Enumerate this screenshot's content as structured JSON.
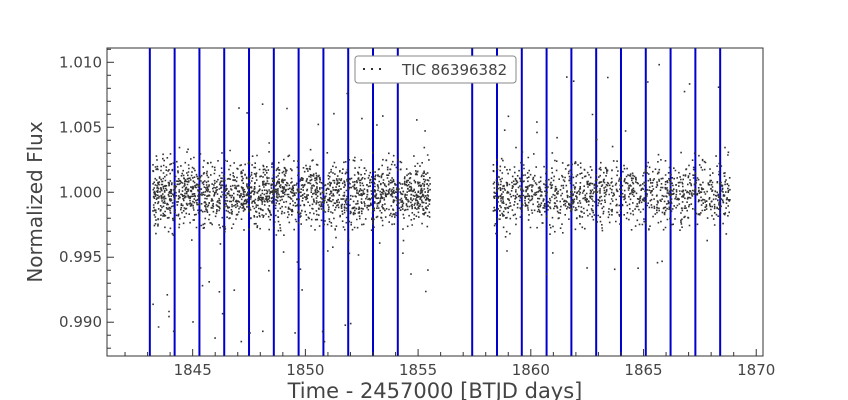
{
  "chart_data": {
    "type": "scatter",
    "xlabel": "Time - 2457000 [BTJD days]",
    "ylabel": "Normalized Flux",
    "xlim": [
      1841.2,
      1870.3
    ],
    "ylim": [
      0.9874,
      1.0111
    ],
    "xticks": [
      1845,
      1850,
      1855,
      1860,
      1865,
      1870
    ],
    "xtick_labels": [
      "1845",
      "1850",
      "1855",
      "1860",
      "1865",
      "1870"
    ],
    "yticks": [
      0.99,
      0.995,
      1.0,
      1.005,
      1.01
    ],
    "ytick_labels": [
      "0.990",
      "0.995",
      "1.000",
      "1.005",
      "1.010"
    ],
    "grid": false,
    "legend_position": "top-center",
    "series": [
      {
        "name": "TIC 86396382",
        "color": "#333333",
        "marker": "dot",
        "segments": [
          {
            "x_start": 1843.2,
            "x_end": 1855.5,
            "center": 1.0,
            "core_halfwidth": 0.0022,
            "outlier_range": [
              0.9885,
              1.0078
            ]
          },
          {
            "x_start": 1858.3,
            "x_end": 1868.8,
            "center": 1.0,
            "core_halfwidth": 0.0022,
            "outlier_range": [
              0.9935,
              1.01
            ]
          }
        ]
      }
    ],
    "vertical_lines": {
      "color": "#0000cc",
      "x": [
        1843.1,
        1844.2,
        1845.3,
        1846.4,
        1847.5,
        1848.6,
        1849.7,
        1850.8,
        1851.9,
        1853.0,
        1854.1,
        1857.4,
        1858.5,
        1859.6,
        1860.7,
        1861.8,
        1862.9,
        1864.0,
        1865.1,
        1866.2,
        1867.3,
        1868.4
      ]
    }
  }
}
